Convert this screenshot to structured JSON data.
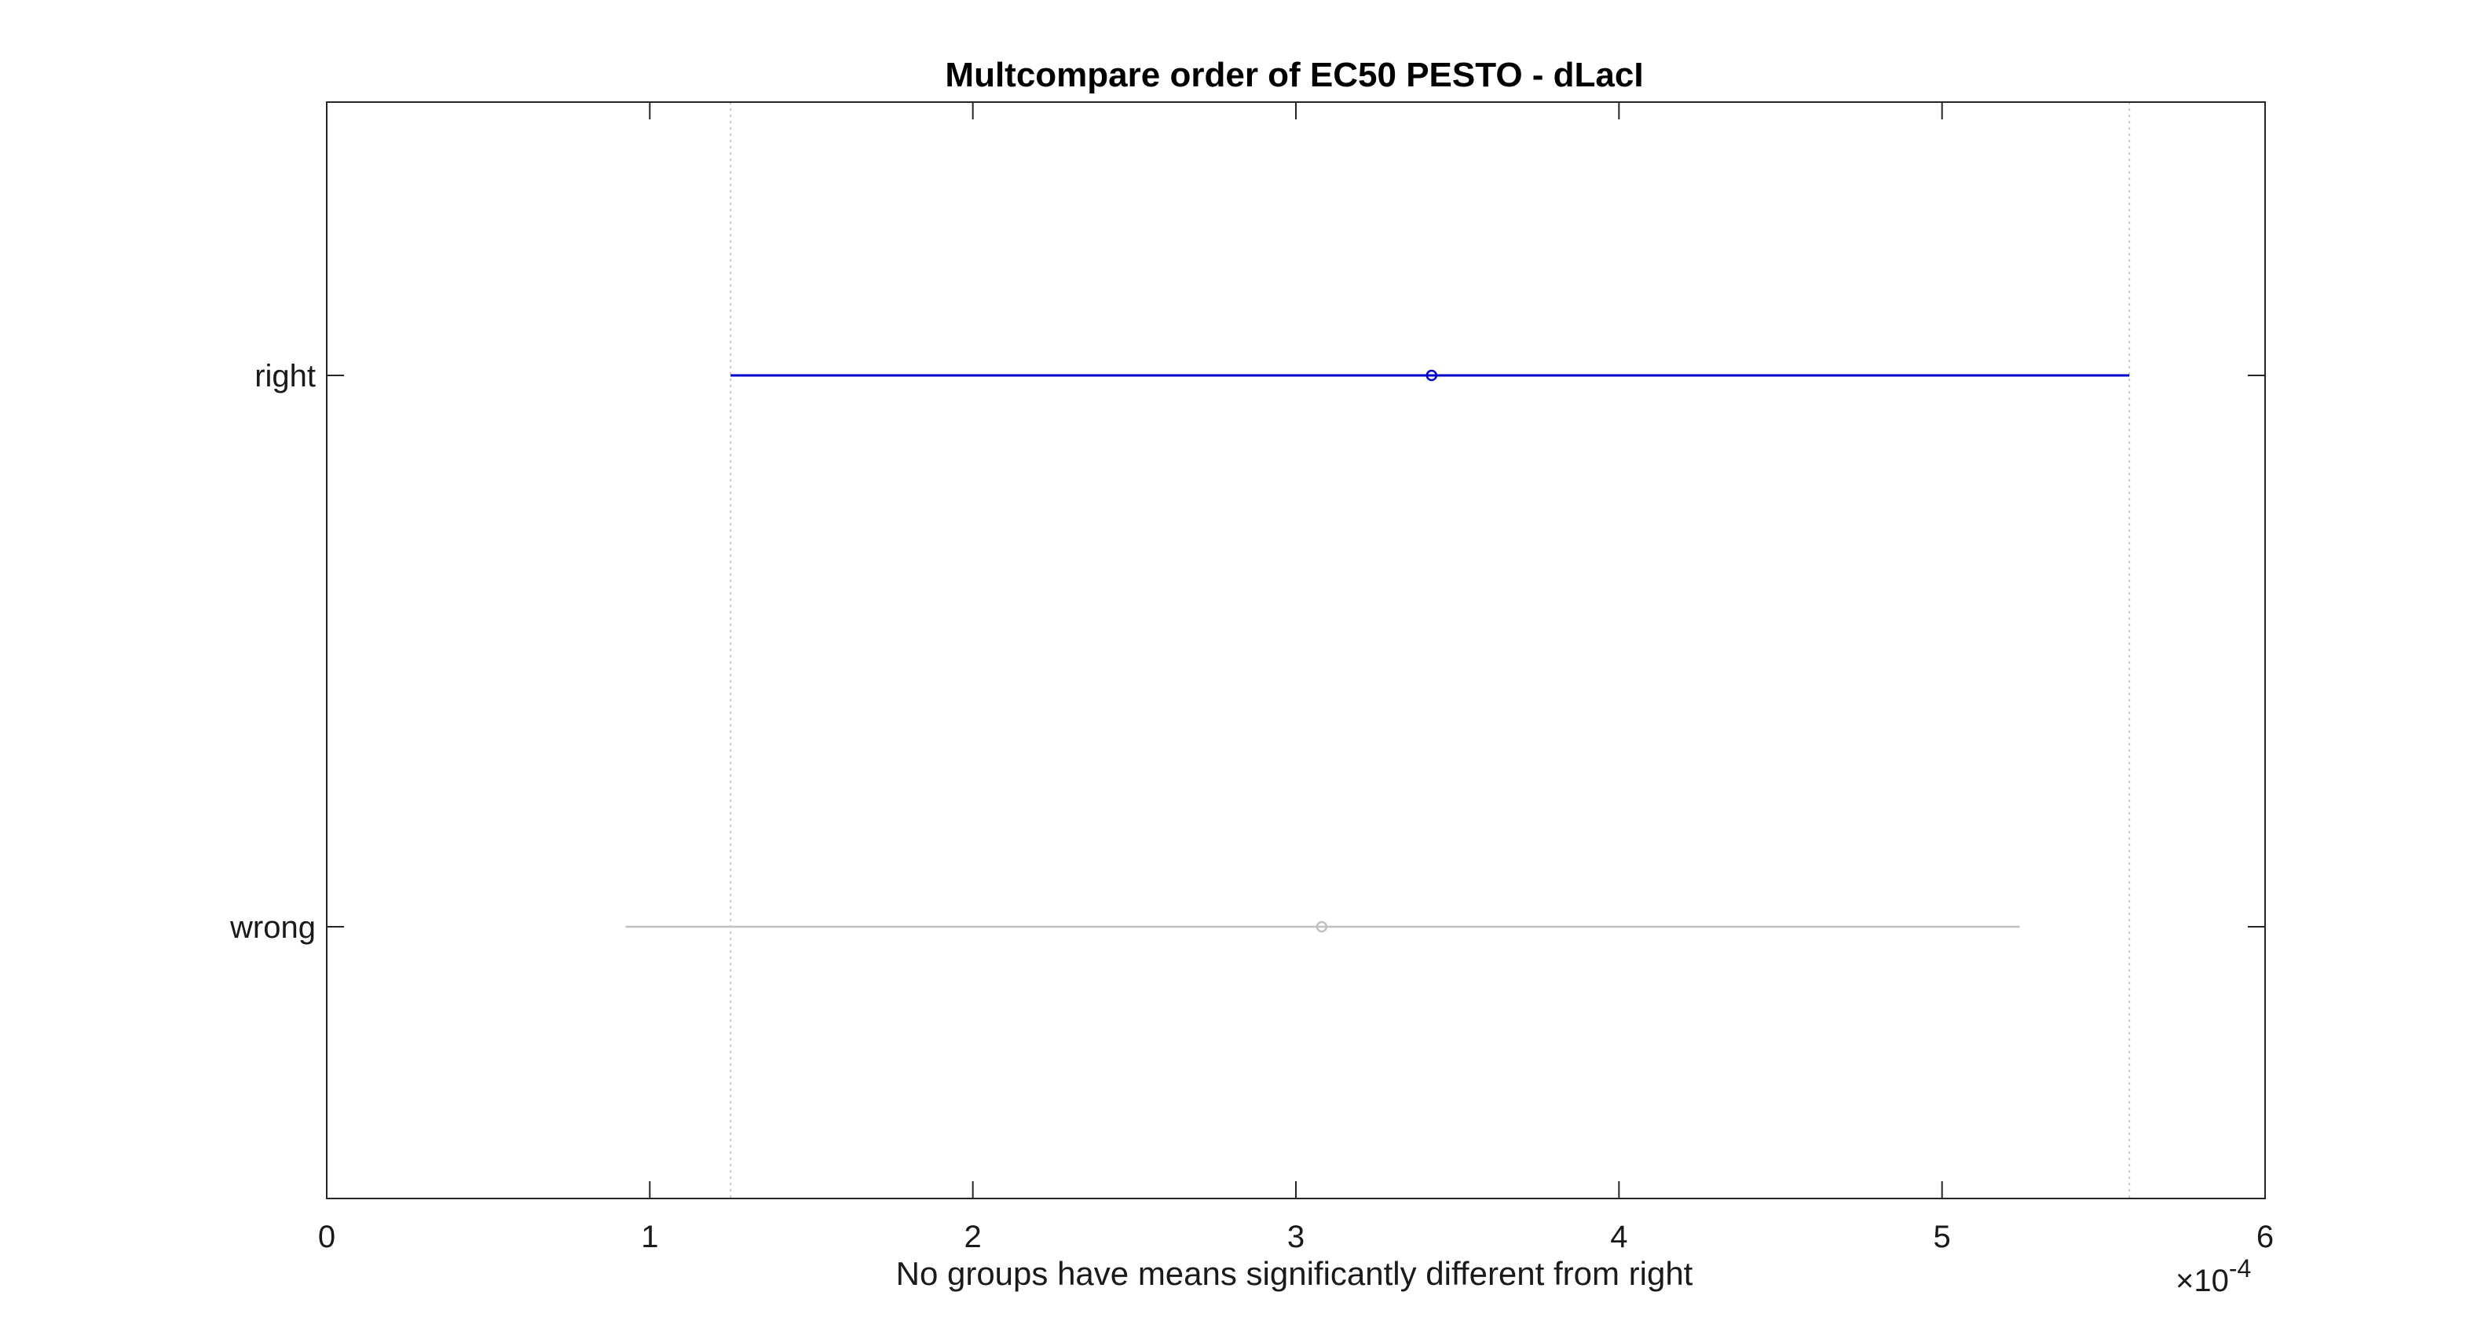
{
  "chart_data": {
    "type": "interval",
    "title": "Multcompare order of EC50 PESTO - dLacI",
    "xlabel": "No groups have means significantly different from right",
    "ylabel": "",
    "xlim": [
      0,
      0.0006
    ],
    "x_ticks": [
      0,
      1,
      2,
      3,
      4,
      5,
      6
    ],
    "x_tick_labels": [
      "0",
      "1",
      "2",
      "3",
      "4",
      "5",
      "6"
    ],
    "x_exponent_label": "×10",
    "x_exponent_power": "-4",
    "x_exponent_value": 0.0001,
    "grid": false,
    "reference_lines": [
      0.000125,
      0.000558
    ],
    "categories": [
      "right",
      "wrong"
    ],
    "series": [
      {
        "name": "right",
        "mean": 0.000342,
        "lower": 0.000125,
        "upper": 0.000558,
        "color": "#0000cc",
        "highlighted": true
      },
      {
        "name": "wrong",
        "mean": 0.000308,
        "lower": 9.25e-05,
        "upper": 0.000524,
        "color": "#c0c0c0",
        "highlighted": false
      }
    ]
  },
  "colors": {
    "axis": "#262626",
    "reference_line": "#c8c8c8",
    "highlight": "#0000cc",
    "muted": "#c0c0c0"
  }
}
